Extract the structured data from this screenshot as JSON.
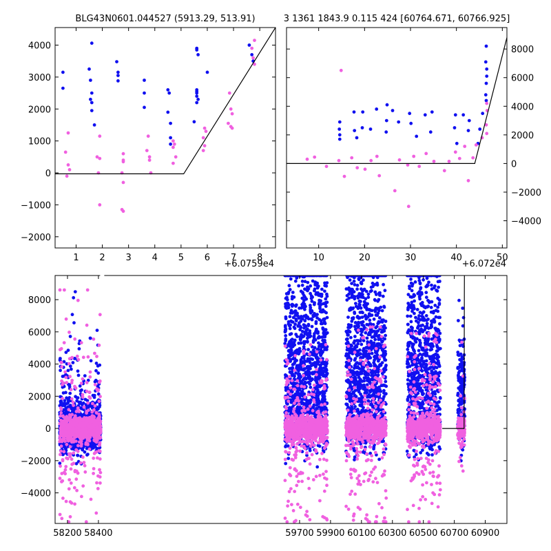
{
  "figure": {
    "title_left": "BLG43N0601.044527 (5913.29, 513.91)",
    "title_right": "3 1361 1843.9 0.115 424 [60764.671, 60766.925]",
    "colors": {
      "series_a": "#1010f0",
      "series_b": "#f060e0",
      "model": "#000000"
    }
  },
  "chart_data": [
    {
      "type": "scatter",
      "name": "zoom-left",
      "title": "BLG43N0601.044527 (5913.29, 513.91)",
      "x_offset_label": "+6.0759e4",
      "xlim": [
        0.2,
        8.6
      ],
      "ylim": [
        -2350,
        4550
      ],
      "xticks": [
        1,
        2,
        3,
        4,
        5,
        6,
        7,
        8
      ],
      "yticks": [
        -2000,
        -1000,
        0,
        1000,
        2000,
        3000,
        4000
      ],
      "ytick_side": "left",
      "model_line": [
        [
          0.2,
          -30
        ],
        [
          5.1,
          -30
        ],
        [
          8.6,
          4550
        ]
      ],
      "series": [
        {
          "name": "blue",
          "color": "#1010f0",
          "points": [
            [
              0.5,
              3150
            ],
            [
              0.5,
              2650
            ],
            [
              1.5,
              3250
            ],
            [
              1.6,
              4060
            ],
            [
              1.55,
              2900
            ],
            [
              1.6,
              2500
            ],
            [
              1.55,
              2300
            ],
            [
              1.6,
              2200
            ],
            [
              1.6,
              1950
            ],
            [
              1.7,
              1500
            ],
            [
              2.55,
              3480
            ],
            [
              2.6,
              3150
            ],
            [
              2.6,
              3050
            ],
            [
              2.6,
              2880
            ],
            [
              3.6,
              2900
            ],
            [
              3.6,
              2500
            ],
            [
              3.6,
              2050
            ],
            [
              4.5,
              2600
            ],
            [
              4.55,
              2500
            ],
            [
              4.5,
              1900
            ],
            [
              4.6,
              1550
            ],
            [
              4.6,
              1100
            ],
            [
              4.6,
              900
            ],
            [
              5.6,
              3900
            ],
            [
              5.6,
              3850
            ],
            [
              5.65,
              3700
            ],
            [
              5.6,
              2600
            ],
            [
              5.6,
              2550
            ],
            [
              5.6,
              2500
            ],
            [
              5.6,
              2400
            ],
            [
              5.65,
              2300
            ],
            [
              5.6,
              2200
            ],
            [
              5.5,
              1600
            ],
            [
              7.6,
              4000
            ],
            [
              7.7,
              3700
            ],
            [
              7.75,
              3500
            ],
            [
              6.0,
              3150
            ]
          ]
        },
        {
          "name": "pink",
          "color": "#f060e0",
          "points": [
            [
              0.6,
              650
            ],
            [
              0.7,
              1250
            ],
            [
              0.7,
              250
            ],
            [
              0.75,
              100
            ],
            [
              0.65,
              -100
            ],
            [
              1.8,
              500
            ],
            [
              1.9,
              450
            ],
            [
              1.9,
              1150
            ],
            [
              1.85,
              0
            ],
            [
              1.9,
              -1000
            ],
            [
              2.8,
              600
            ],
            [
              2.8,
              400
            ],
            [
              2.8,
              350
            ],
            [
              2.75,
              0
            ],
            [
              2.8,
              -300
            ],
            [
              2.75,
              -1150
            ],
            [
              2.8,
              -1200
            ],
            [
              3.75,
              1150
            ],
            [
              3.7,
              700
            ],
            [
              3.8,
              500
            ],
            [
              3.8,
              400
            ],
            [
              3.85,
              0
            ],
            [
              4.7,
              1000
            ],
            [
              4.75,
              900
            ],
            [
              4.7,
              800
            ],
            [
              4.8,
              500
            ],
            [
              4.7,
              300
            ],
            [
              5.9,
              1400
            ],
            [
              5.95,
              1300
            ],
            [
              5.85,
              1100
            ],
            [
              5.9,
              850
            ],
            [
              5.85,
              700
            ],
            [
              6.85,
              2500
            ],
            [
              6.9,
              2000
            ],
            [
              6.95,
              1850
            ],
            [
              6.8,
              1550
            ],
            [
              6.9,
              1450
            ],
            [
              6.95,
              1400
            ],
            [
              7.8,
              4150
            ],
            [
              7.7,
              3900
            ],
            [
              7.75,
              3600
            ],
            [
              7.8,
              3400
            ]
          ]
        }
      ]
    },
    {
      "type": "scatter",
      "name": "zoom-right",
      "title": "3 1361 1843.9 0.115 424 [60764.671, 60766.925]",
      "x_offset_label": "+6.072e4",
      "xlim": [
        3,
        51
      ],
      "ylim": [
        -5900,
        9500
      ],
      "xticks": [
        10,
        20,
        30,
        40,
        50
      ],
      "yticks": [
        -4000,
        -2000,
        0,
        2000,
        4000,
        6000,
        8000
      ],
      "ytick_side": "right",
      "model_line": [
        [
          3,
          0
        ],
        [
          44,
          0
        ],
        [
          51,
          8800
        ]
      ],
      "series": [
        {
          "name": "blue",
          "color": "#1010f0",
          "points": [
            [
              14.6,
              2900
            ],
            [
              14.5,
              2400
            ],
            [
              14.6,
              2000
            ],
            [
              14.6,
              1700
            ],
            [
              17.7,
              3600
            ],
            [
              17.8,
              2300
            ],
            [
              18.3,
              1800
            ],
            [
              19.5,
              2500
            ],
            [
              19.6,
              3600
            ],
            [
              21.3,
              2400
            ],
            [
              22.6,
              3800
            ],
            [
              24.9,
              4100
            ],
            [
              24.8,
              3000
            ],
            [
              24.7,
              2200
            ],
            [
              26.1,
              3700
            ],
            [
              27.4,
              2900
            ],
            [
              29.8,
              3500
            ],
            [
              30.1,
              2800
            ],
            [
              31.3,
              1900
            ],
            [
              33.2,
              3400
            ],
            [
              34.7,
              3600
            ],
            [
              34.4,
              2200
            ],
            [
              39.8,
              3400
            ],
            [
              39.6,
              2500
            ],
            [
              40.1,
              1400
            ],
            [
              41.5,
              3400
            ],
            [
              42.8,
              3000
            ],
            [
              42.6,
              2300
            ],
            [
              44.7,
              1400
            ],
            [
              45.1,
              2400
            ],
            [
              45.7,
              3500
            ],
            [
              46.5,
              8200
            ],
            [
              46.4,
              7100
            ],
            [
              46.6,
              6600
            ],
            [
              46.6,
              6100
            ],
            [
              46.5,
              5600
            ],
            [
              46.4,
              4800
            ],
            [
              46.5,
              4400
            ]
          ]
        },
        {
          "name": "pink",
          "color": "#f060e0",
          "points": [
            [
              14.9,
              6500
            ],
            [
              7.5,
              300
            ],
            [
              9.1,
              450
            ],
            [
              11.7,
              -200
            ],
            [
              14.4,
              200
            ],
            [
              15.6,
              -900
            ],
            [
              17.2,
              400
            ],
            [
              18.4,
              -300
            ],
            [
              20.1,
              -400
            ],
            [
              21.4,
              200
            ],
            [
              22.7,
              500
            ],
            [
              23.2,
              -850
            ],
            [
              26.6,
              -1900
            ],
            [
              27.6,
              250
            ],
            [
              29.4,
              -100
            ],
            [
              29.6,
              -3000
            ],
            [
              30.7,
              500
            ],
            [
              31.9,
              -200
            ],
            [
              33.4,
              700
            ],
            [
              35.1,
              150
            ],
            [
              37.4,
              -500
            ],
            [
              38.4,
              150
            ],
            [
              39.8,
              800
            ],
            [
              40.7,
              350
            ],
            [
              41.8,
              1200
            ],
            [
              42.6,
              -1200
            ],
            [
              43.6,
              400
            ],
            [
              44.3,
              1300
            ],
            [
              45.6,
              1800
            ],
            [
              46.6,
              4200
            ],
            [
              46.7,
              3700
            ],
            [
              46.5,
              2700
            ],
            [
              46.6,
              2100
            ]
          ]
        }
      ]
    },
    {
      "type": "scatter",
      "name": "full-light-curve",
      "xlim": [
        58120,
        61040
      ],
      "ylim": [
        -5900,
        9500
      ],
      "xticks": [
        58200,
        58400,
        59700,
        59900,
        60100,
        60300,
        60500,
        60700,
        60900
      ],
      "yticks": [
        -4000,
        -2000,
        0,
        2000,
        4000,
        6000,
        8000
      ],
      "ytick_side": "left",
      "axis_break_at": 58420,
      "model_line": [
        [
          60622,
          0
        ],
        [
          60763,
          0
        ],
        [
          60764.7,
          8300
        ],
        [
          60765.2,
          9500
        ]
      ],
      "seasons": [
        {
          "x0": 58150,
          "x1": 58415,
          "blue_spread": 2900,
          "pink_spread": 2300,
          "blue_max": 8900,
          "pink_max": 8600
        },
        {
          "x0": 59605,
          "x1": 59880,
          "blue_spread": 5300,
          "pink_spread": 2400,
          "blue_max": 9500,
          "pink_max": 5200
        },
        {
          "x0": 60000,
          "x1": 60260,
          "blue_spread": 6200,
          "pink_spread": 2500,
          "blue_max": 9500,
          "pink_max": 6300
        },
        {
          "x0": 60395,
          "x1": 60610,
          "blue_spread": 5500,
          "pink_spread": 2200,
          "blue_max": 9500,
          "pink_max": 5900
        },
        {
          "x0": 60722,
          "x1": 60768,
          "blue_spread": 2600,
          "pink_spread": 900,
          "blue_max": 8200,
          "pink_max": 6500
        }
      ],
      "series": [
        {
          "name": "blue",
          "color": "#1010f0"
        },
        {
          "name": "pink",
          "color": "#f060e0"
        }
      ]
    }
  ]
}
